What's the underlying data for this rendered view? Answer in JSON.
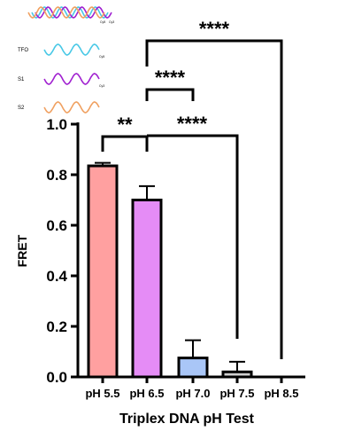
{
  "chart_data": {
    "type": "bar",
    "xlabel": "Triplex DNA pH Test",
    "ylabel": "FRET",
    "ylim": [
      0,
      1.0
    ],
    "yticks": [
      "0.0",
      "0.2",
      "0.4",
      "0.6",
      "0.8",
      "1.0"
    ],
    "categories": [
      "pH 5.5",
      "pH 6.5",
      "pH 7.0",
      "pH 7.5",
      "pH 8.5"
    ],
    "values": [
      0.835,
      0.7,
      0.075,
      0.02,
      0.0
    ],
    "errors": [
      0.012,
      0.055,
      0.07,
      0.04,
      0.0
    ],
    "colors": [
      "#ffa0a0",
      "#e58cf6",
      "#a9c6f7",
      "#d0d0d0",
      "#ffffff"
    ],
    "significance": [
      {
        "from": "pH 5.5",
        "to": "pH 6.5",
        "label": "**"
      },
      {
        "from": "pH 6.5",
        "to": "pH 7.0",
        "label": "****"
      },
      {
        "from": "pH 6.5",
        "to": "pH 7.5",
        "label": "****"
      },
      {
        "from": "pH 6.5",
        "to": "pH 8.5",
        "label": "****"
      }
    ],
    "grid": false
  },
  "schematic": {
    "strands": [
      {
        "label": "TFO",
        "color": "#48c8e6",
        "tag": "Cy5"
      },
      {
        "label": "S1",
        "color": "#a020d0",
        "tag": "Cy3"
      },
      {
        "label": "S2",
        "color": "#f0a060",
        "tag": ""
      }
    ],
    "complex_tags": [
      "Cy5",
      "Cy3"
    ]
  }
}
